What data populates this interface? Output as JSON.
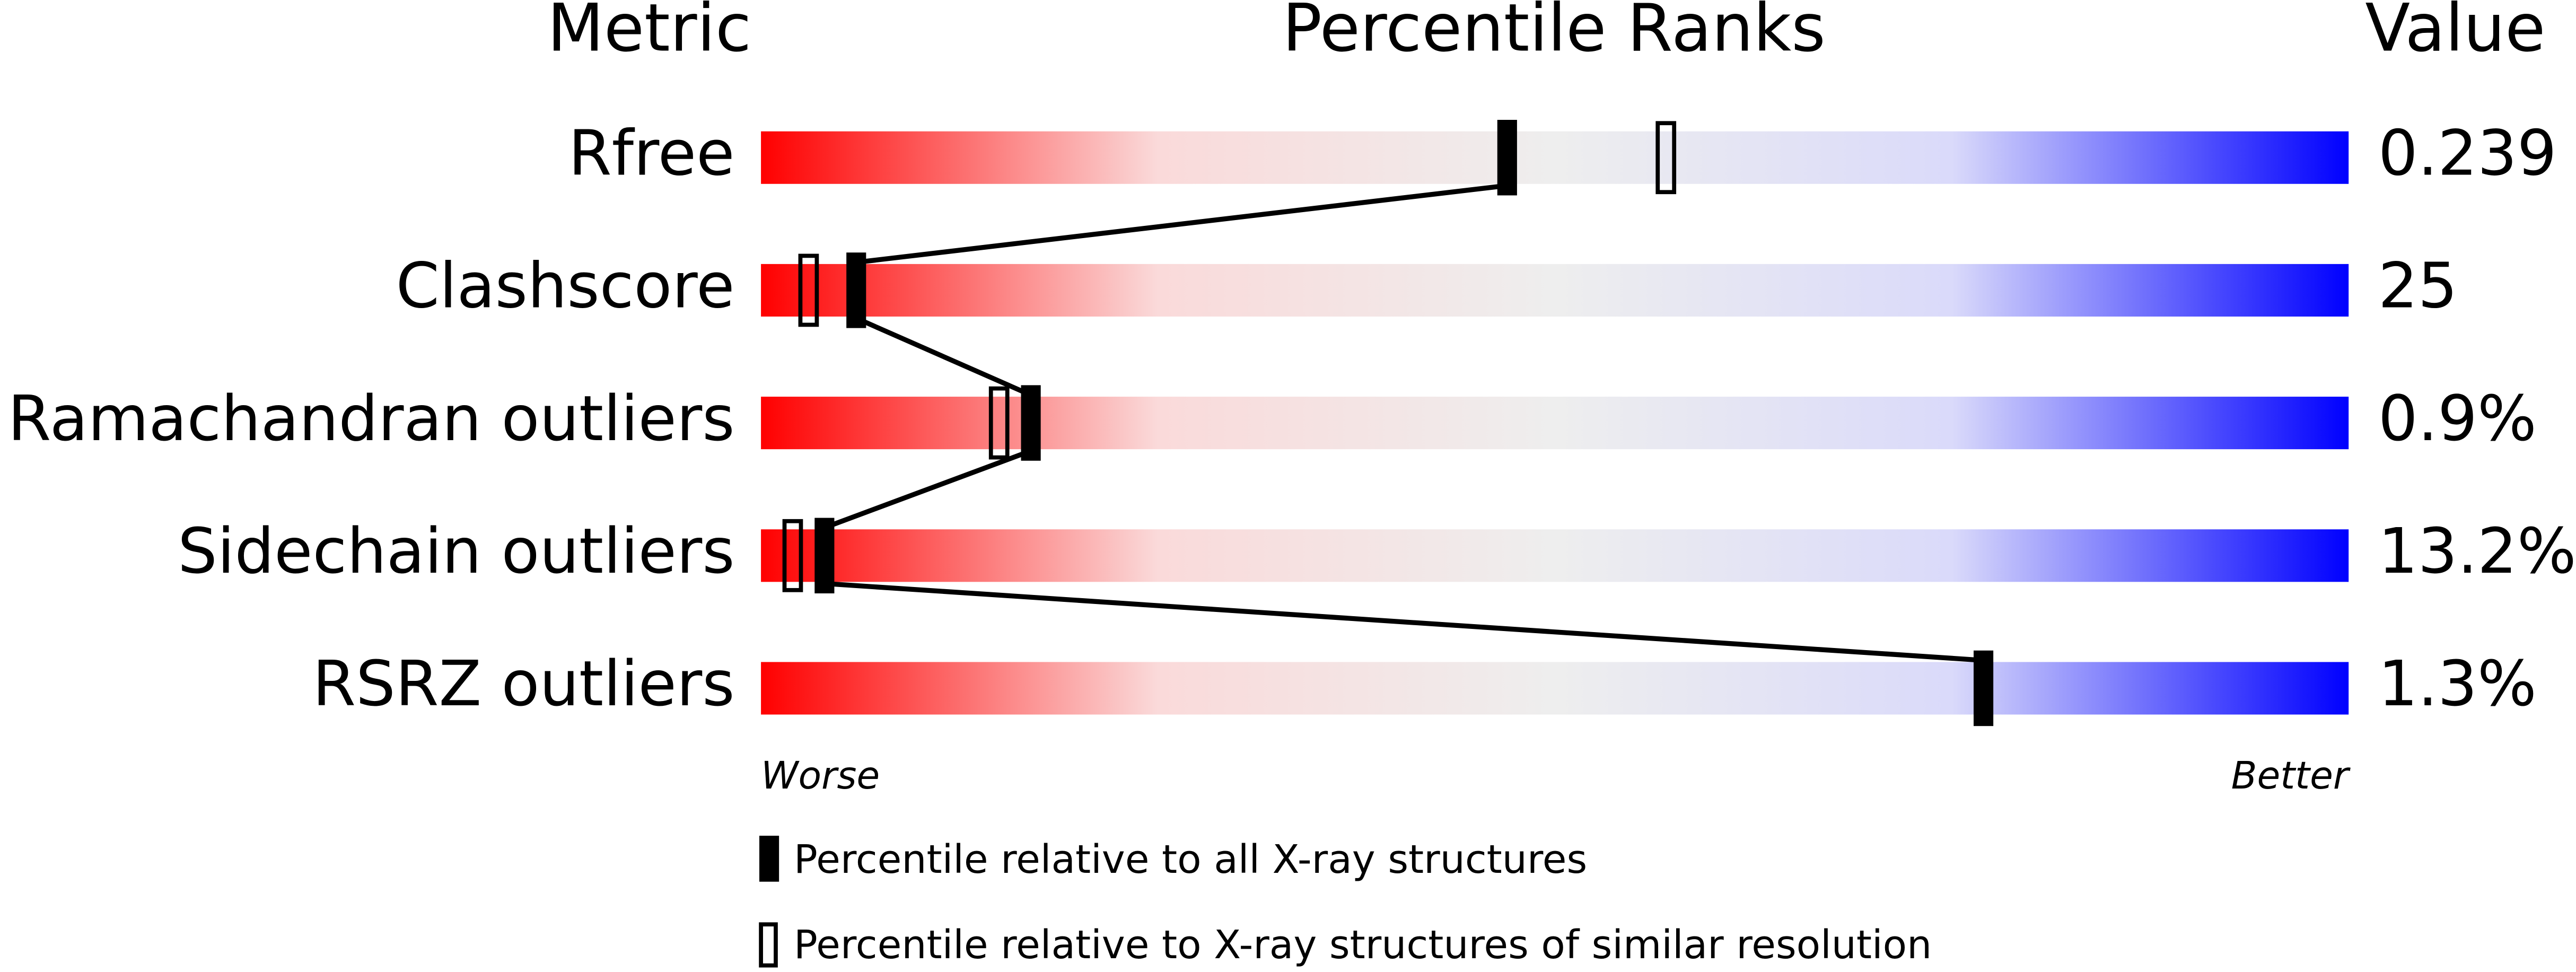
{
  "chart_data": {
    "type": "percentile",
    "headers": {
      "metric": "Metric",
      "ranks": "Percentile Ranks",
      "value": "Value"
    },
    "metrics": [
      "Rfree",
      "Clashscore",
      "Ramachandran outliers",
      "Sidechain outliers",
      "RSRZ outliers"
    ],
    "metric_values": [
      "0.239",
      "25",
      "0.9%",
      "13.2%",
      "1.3%"
    ],
    "series": [
      {
        "name": "Percentile relative to all X-ray structures",
        "color": "#000000",
        "style": "filled",
        "values": [
          47,
          6,
          17,
          4,
          77
        ]
      },
      {
        "name": "Percentile relative to X-ray structures of similar resolution",
        "color": "#000000",
        "style": "hollow",
        "values": [
          57,
          3,
          15,
          2,
          null
        ]
      }
    ],
    "xlim": [
      0,
      100
    ],
    "axis_labels": {
      "low": "Worse",
      "high": "Better"
    },
    "gradient": [
      "#ff0000",
      "#fadada",
      "#eeeeee",
      "#dadafa",
      "#0000ff"
    ]
  }
}
